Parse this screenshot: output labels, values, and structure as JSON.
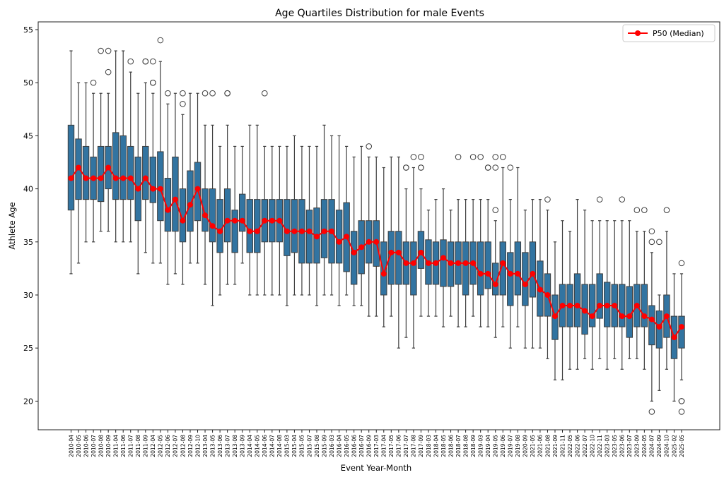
{
  "chart_data": {
    "type": "box",
    "title": "Age Quartiles Distribution for male Events",
    "xlabel": "Event Year-Month",
    "ylabel": "Athlete Age",
    "ylim": [
      17.3,
      55.73
    ],
    "yticks": [
      20,
      25,
      30,
      35,
      40,
      45,
      50,
      55
    ],
    "grid": false,
    "legend": {
      "position": "top-right",
      "entries": [
        "P50 (Median)"
      ]
    },
    "colors": {
      "box": "#3274a1",
      "box_edge": "#3d3d3d",
      "whisker": "#3d3d3d",
      "median_line": "#ff0000",
      "outlier_edge": "#3d3d3d"
    },
    "categories": [
      "2010-04",
      "2010-05",
      "2010-06",
      "2010-07",
      "2010-08",
      "2010-09",
      "2011-04",
      "2011-06",
      "2011-07",
      "2011-08",
      "2011-09",
      "2012-04",
      "2012-05",
      "2012-06",
      "2012-07",
      "2012-08",
      "2012-09",
      "2012-10",
      "2013-04",
      "2013-05",
      "2013-06",
      "2013-07",
      "2013-08",
      "2013-09",
      "2014-04",
      "2014-05",
      "2014-06",
      "2014-07",
      "2014-08",
      "2015-03",
      "2015-04",
      "2015-05",
      "2015-07",
      "2015-08",
      "2015-09",
      "2016-03",
      "2016-04",
      "2016-05",
      "2016-06",
      "2016-07",
      "2016-09",
      "2017-03",
      "2017-04",
      "2017-05",
      "2017-06",
      "2017-07",
      "2017-08",
      "2017-09",
      "2018-03",
      "2018-04",
      "2018-05",
      "2018-06",
      "2018-07",
      "2018-08",
      "2018-09",
      "2019-03",
      "2019-04",
      "2019-05",
      "2019-06",
      "2019-07",
      "2019-08",
      "2020-09",
      "2021-05",
      "2021-06",
      "2021-08",
      "2021-09",
      "2021-11",
      "2022-05",
      "2022-06",
      "2022-07",
      "2022-10",
      "2022-11",
      "2023-03",
      "2023-05",
      "2023-06",
      "2023-07",
      "2023-09",
      "2024-05",
      "2024-07",
      "2024-09",
      "2024-10",
      "2025-02",
      "2025-05"
    ],
    "boxes": [
      {
        "q1": 38,
        "median": 41,
        "q3": 46,
        "whislo": 32,
        "whishi": 53,
        "fliers": []
      },
      {
        "q1": 39,
        "median": 42,
        "q3": 44.7,
        "whislo": 33,
        "whishi": 50,
        "fliers": []
      },
      {
        "q1": 39,
        "median": 41,
        "q3": 44,
        "whislo": 35,
        "whishi": 50,
        "fliers": []
      },
      {
        "q1": 39,
        "median": 41,
        "q3": 43,
        "whislo": 35,
        "whishi": 49,
        "fliers": [
          50
        ]
      },
      {
        "q1": 38.8,
        "median": 41,
        "q3": 44,
        "whislo": 36,
        "whishi": 49,
        "fliers": [
          53
        ]
      },
      {
        "q1": 40,
        "median": 42,
        "q3": 44,
        "whislo": 36,
        "whishi": 49,
        "fliers": [
          53,
          51
        ]
      },
      {
        "q1": 39,
        "median": 41,
        "q3": 45.3,
        "whislo": 35,
        "whishi": 53,
        "fliers": []
      },
      {
        "q1": 39,
        "median": 41,
        "q3": 45,
        "whislo": 35,
        "whishi": 53,
        "fliers": []
      },
      {
        "q1": 39,
        "median": 41,
        "q3": 44,
        "whislo": 35,
        "whishi": 51,
        "fliers": [
          52
        ]
      },
      {
        "q1": 37,
        "median": 40,
        "q3": 43,
        "whislo": 32,
        "whishi": 49,
        "fliers": []
      },
      {
        "q1": 39,
        "median": 41,
        "q3": 44,
        "whislo": 34,
        "whishi": 50,
        "fliers": [
          52,
          52
        ]
      },
      {
        "q1": 38.7,
        "median": 40,
        "q3": 43,
        "whislo": 33,
        "whishi": 49,
        "fliers": [
          52,
          50,
          50
        ]
      },
      {
        "q1": 37,
        "median": 40,
        "q3": 43.5,
        "whislo": 33,
        "whishi": 52,
        "fliers": [
          54
        ]
      },
      {
        "q1": 36,
        "median": 38,
        "q3": 41,
        "whislo": 31,
        "whishi": 48,
        "fliers": [
          49
        ]
      },
      {
        "q1": 36,
        "median": 39,
        "q3": 43,
        "whislo": 32,
        "whishi": 49,
        "fliers": []
      },
      {
        "q1": 35,
        "median": 37,
        "q3": 40,
        "whislo": 31,
        "whishi": 47,
        "fliers": [
          49,
          48
        ]
      },
      {
        "q1": 36,
        "median": 38.5,
        "q3": 41.7,
        "whislo": 33,
        "whishi": 49,
        "fliers": []
      },
      {
        "q1": 37,
        "median": 40,
        "q3": 42.5,
        "whislo": 33,
        "whishi": 49,
        "fliers": []
      },
      {
        "q1": 36,
        "median": 37.5,
        "q3": 40,
        "whislo": 31,
        "whishi": 46,
        "fliers": [
          49
        ]
      },
      {
        "q1": 35,
        "median": 36.5,
        "q3": 40,
        "whislo": 29,
        "whishi": 46,
        "fliers": [
          49
        ]
      },
      {
        "q1": 34,
        "median": 36,
        "q3": 39,
        "whislo": 30,
        "whishi": 44,
        "fliers": []
      },
      {
        "q1": 35,
        "median": 37,
        "q3": 40,
        "whislo": 31,
        "whishi": 46,
        "fliers": [
          49,
          49
        ]
      },
      {
        "q1": 34,
        "median": 37,
        "q3": 38,
        "whislo": 31,
        "whishi": 44,
        "fliers": []
      },
      {
        "q1": 36,
        "median": 37,
        "q3": 39.5,
        "whislo": 33,
        "whishi": 44,
        "fliers": []
      },
      {
        "q1": 34,
        "median": 36,
        "q3": 39,
        "whislo": 30,
        "whishi": 46,
        "fliers": []
      },
      {
        "q1": 34,
        "median": 36,
        "q3": 39,
        "whislo": 30,
        "whishi": 46,
        "fliers": []
      },
      {
        "q1": 35,
        "median": 37,
        "q3": 39,
        "whislo": 30,
        "whishi": 44,
        "fliers": [
          49
        ]
      },
      {
        "q1": 35,
        "median": 37,
        "q3": 39,
        "whislo": 30,
        "whishi": 44,
        "fliers": []
      },
      {
        "q1": 35,
        "median": 37,
        "q3": 39,
        "whislo": 30,
        "whishi": 44,
        "fliers": []
      },
      {
        "q1": 33.7,
        "median": 36,
        "q3": 39,
        "whislo": 29,
        "whishi": 44,
        "fliers": []
      },
      {
        "q1": 34,
        "median": 36,
        "q3": 39,
        "whislo": 30,
        "whishi": 45,
        "fliers": []
      },
      {
        "q1": 33,
        "median": 36,
        "q3": 39,
        "whislo": 30,
        "whishi": 44,
        "fliers": []
      },
      {
        "q1": 33,
        "median": 36,
        "q3": 38,
        "whislo": 30,
        "whishi": 44,
        "fliers": []
      },
      {
        "q1": 33,
        "median": 35.5,
        "q3": 38.2,
        "whislo": 29,
        "whishi": 44,
        "fliers": []
      },
      {
        "q1": 33.5,
        "median": 36,
        "q3": 39,
        "whislo": 30,
        "whishi": 46,
        "fliers": []
      },
      {
        "q1": 33,
        "median": 36,
        "q3": 39,
        "whislo": 30,
        "whishi": 45,
        "fliers": []
      },
      {
        "q1": 33,
        "median": 35,
        "q3": 38,
        "whislo": 29,
        "whishi": 45,
        "fliers": []
      },
      {
        "q1": 32.2,
        "median": 35.5,
        "q3": 38.7,
        "whislo": 30,
        "whishi": 44,
        "fliers": []
      },
      {
        "q1": 31,
        "median": 34,
        "q3": 36,
        "whislo": 29,
        "whishi": 43,
        "fliers": []
      },
      {
        "q1": 32,
        "median": 34.5,
        "q3": 37,
        "whislo": 29,
        "whishi": 44,
        "fliers": []
      },
      {
        "q1": 33,
        "median": 35,
        "q3": 37,
        "whislo": 28,
        "whishi": 43,
        "fliers": [
          44
        ]
      },
      {
        "q1": 32.7,
        "median": 35,
        "q3": 37,
        "whislo": 28,
        "whishi": 43,
        "fliers": []
      },
      {
        "q1": 30,
        "median": 32,
        "q3": 35,
        "whislo": 27,
        "whishi": 42,
        "fliers": []
      },
      {
        "q1": 31,
        "median": 34,
        "q3": 36,
        "whislo": 28,
        "whishi": 43,
        "fliers": []
      },
      {
        "q1": 31,
        "median": 34,
        "q3": 36,
        "whislo": 25,
        "whishi": 43,
        "fliers": []
      },
      {
        "q1": 31,
        "median": 33,
        "q3": 35,
        "whislo": 26,
        "whishi": 40,
        "fliers": [
          42,
          42
        ]
      },
      {
        "q1": 30,
        "median": 33,
        "q3": 35,
        "whislo": 25,
        "whishi": 42,
        "fliers": [
          43
        ]
      },
      {
        "q1": 32.5,
        "median": 34,
        "q3": 36,
        "whislo": 28,
        "whishi": 40,
        "fliers": [
          43,
          42,
          42
        ]
      },
      {
        "q1": 31,
        "median": 33,
        "q3": 35.2,
        "whislo": 28,
        "whishi": 38,
        "fliers": []
      },
      {
        "q1": 31,
        "median": 33,
        "q3": 35,
        "whislo": 28,
        "whishi": 39,
        "fliers": []
      },
      {
        "q1": 30.8,
        "median": 33.5,
        "q3": 35.2,
        "whislo": 27,
        "whishi": 40,
        "fliers": []
      },
      {
        "q1": 30.8,
        "median": 33,
        "q3": 35,
        "whislo": 28,
        "whishi": 38,
        "fliers": []
      },
      {
        "q1": 31,
        "median": 33,
        "q3": 35,
        "whislo": 27,
        "whishi": 39,
        "fliers": [
          43
        ]
      },
      {
        "q1": 30,
        "median": 33,
        "q3": 35,
        "whislo": 27,
        "whishi": 39,
        "fliers": []
      },
      {
        "q1": 31,
        "median": 33,
        "q3": 35,
        "whislo": 28,
        "whishi": 39,
        "fliers": [
          43
        ]
      },
      {
        "q1": 30,
        "median": 32,
        "q3": 35,
        "whislo": 27,
        "whishi": 39,
        "fliers": [
          43
        ]
      },
      {
        "q1": 30.6,
        "median": 32,
        "q3": 35,
        "whislo": 27,
        "whishi": 39,
        "fliers": [
          42,
          42
        ]
      },
      {
        "q1": 30,
        "median": 31,
        "q3": 33,
        "whislo": 26,
        "whishi": 37,
        "fliers": [
          38,
          42,
          43
        ]
      },
      {
        "q1": 30,
        "median": 33,
        "q3": 35,
        "whislo": 27,
        "whishi": 42,
        "fliers": [
          43
        ]
      },
      {
        "q1": 29,
        "median": 32,
        "q3": 34,
        "whislo": 25,
        "whishi": 39,
        "fliers": [
          42
        ]
      },
      {
        "q1": 30,
        "median": 32,
        "q3": 35,
        "whislo": 27,
        "whishi": 42,
        "fliers": []
      },
      {
        "q1": 29,
        "median": 31,
        "q3": 34,
        "whislo": 25,
        "whishi": 38,
        "fliers": []
      },
      {
        "q1": 29.8,
        "median": 32,
        "q3": 35,
        "whislo": 25,
        "whishi": 39,
        "fliers": []
      },
      {
        "q1": 28,
        "median": 30.5,
        "q3": 33.2,
        "whislo": 25,
        "whishi": 39,
        "fliers": []
      },
      {
        "q1": 28,
        "median": 30,
        "q3": 32,
        "whislo": 24,
        "whishi": 38,
        "fliers": [
          39
        ]
      },
      {
        "q1": 25.8,
        "median": 28,
        "q3": 30,
        "whislo": 22,
        "whishi": 35,
        "fliers": []
      },
      {
        "q1": 27,
        "median": 29,
        "q3": 31,
        "whislo": 22,
        "whishi": 37,
        "fliers": []
      },
      {
        "q1": 27,
        "median": 29,
        "q3": 31,
        "whislo": 23,
        "whishi": 36,
        "fliers": []
      },
      {
        "q1": 27,
        "median": 29,
        "q3": 32,
        "whislo": 23,
        "whishi": 39,
        "fliers": []
      },
      {
        "q1": 26.3,
        "median": 28.5,
        "q3": 31,
        "whislo": 24,
        "whishi": 38,
        "fliers": []
      },
      {
        "q1": 27,
        "median": 28,
        "q3": 31,
        "whislo": 23,
        "whishi": 37,
        "fliers": []
      },
      {
        "q1": 27.8,
        "median": 29,
        "q3": 32,
        "whislo": 24,
        "whishi": 37,
        "fliers": [
          39
        ]
      },
      {
        "q1": 27,
        "median": 29,
        "q3": 31.2,
        "whislo": 23,
        "whishi": 37,
        "fliers": []
      },
      {
        "q1": 27,
        "median": 29,
        "q3": 31,
        "whislo": 24,
        "whishi": 37,
        "fliers": []
      },
      {
        "q1": 27,
        "median": 28,
        "q3": 31,
        "whislo": 23,
        "whishi": 37,
        "fliers": [
          39
        ]
      },
      {
        "q1": 26,
        "median": 28,
        "q3": 30.8,
        "whislo": 24,
        "whishi": 37,
        "fliers": []
      },
      {
        "q1": 27,
        "median": 29,
        "q3": 31,
        "whislo": 24,
        "whishi": 36,
        "fliers": [
          38
        ]
      },
      {
        "q1": 27,
        "median": 28,
        "q3": 31,
        "whislo": 23,
        "whishi": 36,
        "fliers": [
          38
        ]
      },
      {
        "q1": 25.3,
        "median": 27.7,
        "q3": 29,
        "whislo": 20,
        "whishi": 34,
        "fliers": [
          36,
          35,
          19
        ]
      },
      {
        "q1": 25,
        "median": 27,
        "q3": 28.5,
        "whislo": 21,
        "whishi": 30,
        "fliers": [
          35
        ]
      },
      {
        "q1": 26,
        "median": 28,
        "q3": 30,
        "whislo": 23,
        "whishi": 36,
        "fliers": [
          38
        ]
      },
      {
        "q1": 24,
        "median": 26,
        "q3": 28,
        "whislo": 20,
        "whishi": 32,
        "fliers": []
      },
      {
        "q1": 25,
        "median": 27,
        "q3": 28,
        "whislo": 22,
        "whishi": 32,
        "fliers": [
          33,
          20,
          20,
          19
        ]
      }
    ]
  }
}
